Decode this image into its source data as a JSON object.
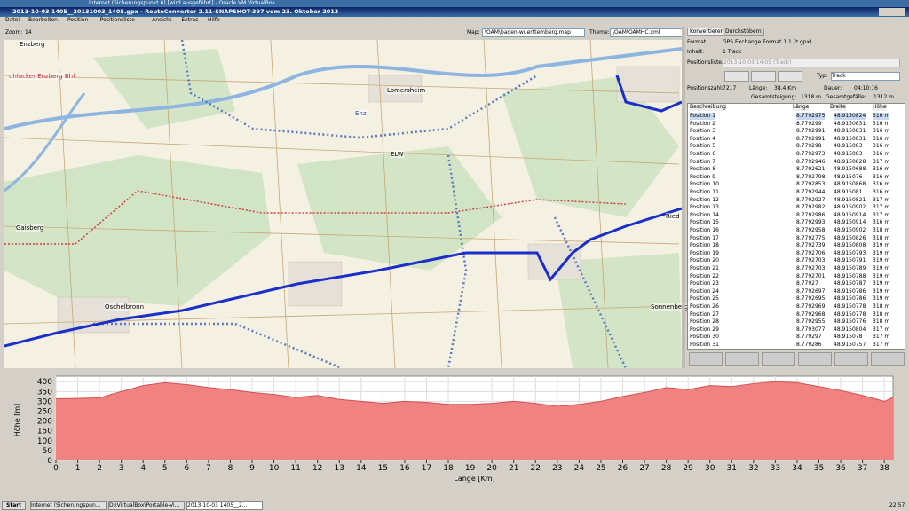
{
  "window": {
    "background_title": "Internet (Sicherungspunkt 6) [wird ausgeführt] - Oracle VM VirtualBox",
    "title": "2013-10-03 1405__20131003_1405.gpx - RouteConverter 2.11-SNAPSHOT-397 vom 23. Oktober 2013"
  },
  "menu": [
    "Datei",
    "Bearbeiten",
    "Position",
    "Positionsliste",
    "Ansicht",
    "Extras",
    "Hilfe"
  ],
  "map_toolbar": {
    "zoom_label": "Zoom:",
    "zoom": "14",
    "map_label": "Map:",
    "map": "\\OAM\\baden-wuerttemberg.map",
    "theme_label": "Theme:",
    "theme": "\\OAM\\OAMHC.xml"
  },
  "map_labels": [
    "Enzberg",
    "uhlacker Enzberg Bhf",
    "Lomersheim",
    "Enz",
    "ELW",
    "Gaisberg",
    "Oschelbronn",
    "Sonnenberg",
    "Ried"
  ],
  "panel": {
    "tabs": [
      "Konvertieren",
      "Durchstöbern"
    ],
    "format_label": "Format:",
    "format": "GPS Exchange Format 1.1 (*.gpx)",
    "inhalt_label": "Inhalt:",
    "inhalt": "1 Track",
    "positionsliste_label": "Positionsliste:",
    "positionsliste": "2013-10-03 14:05 (Track)",
    "typ_label": "Typ:",
    "typ": "Track",
    "stats": [
      {
        "label": "Positionszahl:",
        "value": "7217"
      },
      {
        "label": "Länge:",
        "value": "38.4 Km"
      },
      {
        "label": "Dauer:",
        "value": "04:10:16"
      },
      {
        "label": "Gesamtsteigung:",
        "value": "1318 m"
      },
      {
        "label": "Gesamtgefälle:",
        "value": "1312 m"
      }
    ]
  },
  "table": {
    "columns": [
      "Beschreibung",
      "Länge",
      "Breite",
      "Höhe"
    ],
    "rows": [
      [
        "Position 1",
        "8.7792975",
        "48.9150824",
        "316 m"
      ],
      [
        "Position 2",
        "8.779299",
        "48.9150831",
        "316 m"
      ],
      [
        "Position 3",
        "8.7792991",
        "48.9150831",
        "316 m"
      ],
      [
        "Position 4",
        "8.7792991",
        "48.9150831",
        "316 m"
      ],
      [
        "Position 5",
        "8.779298",
        "48.915083",
        "316 m"
      ],
      [
        "Position 6",
        "8.7792973",
        "48.915083",
        "316 m"
      ],
      [
        "Position 7",
        "8.7792946",
        "48.9150828",
        "317 m"
      ],
      [
        "Position 8",
        "8.7792621",
        "48.9150688",
        "316 m"
      ],
      [
        "Position 9",
        "8.7792798",
        "48.915076",
        "316 m"
      ],
      [
        "Position 10",
        "8.7792853",
        "48.9150868",
        "316 m"
      ],
      [
        "Position 11",
        "8.7792944",
        "48.915081",
        "316 m"
      ],
      [
        "Position 12",
        "8.7792927",
        "48.9150821",
        "317 m"
      ],
      [
        "Position 13",
        "8.7792982",
        "48.9150902",
        "317 m"
      ],
      [
        "Position 14",
        "8.7792986",
        "48.9150914",
        "317 m"
      ],
      [
        "Position 15",
        "8.7792993",
        "48.9150914",
        "316 m"
      ],
      [
        "Position 16",
        "8.7792958",
        "48.9150902",
        "318 m"
      ],
      [
        "Position 17",
        "8.7792775",
        "48.9150826",
        "318 m"
      ],
      [
        "Position 18",
        "8.7792739",
        "48.9150808",
        "319 m"
      ],
      [
        "Position 19",
        "8.7792706",
        "48.9150793",
        "319 m"
      ],
      [
        "Position 20",
        "8.7792703",
        "48.9150791",
        "319 m"
      ],
      [
        "Position 21",
        "8.7792703",
        "48.9150789",
        "319 m"
      ],
      [
        "Position 22",
        "8.7792701",
        "48.9150788",
        "319 m"
      ],
      [
        "Position 23",
        "8.77927",
        "48.9150787",
        "319 m"
      ],
      [
        "Position 24",
        "8.7792697",
        "48.9150786",
        "319 m"
      ],
      [
        "Position 25",
        "8.7792695",
        "48.9150786",
        "319 m"
      ],
      [
        "Position 26",
        "8.7792969",
        "48.9150778",
        "318 m"
      ],
      [
        "Position 27",
        "8.7792968",
        "48.9150778",
        "318 m"
      ],
      [
        "Position 28",
        "8.7792955",
        "48.9150776",
        "318 m"
      ],
      [
        "Position 29",
        "8.7793077",
        "48.9150804",
        "317 m"
      ],
      [
        "Position 30",
        "8.779297",
        "48.915078",
        "317 m"
      ],
      [
        "Position 31",
        "8.779286",
        "48.9150757",
        "317 m"
      ]
    ]
  },
  "chart_data": {
    "type": "area",
    "xlabel": "Länge [Km]",
    "ylabel": "Höhe [m]",
    "color": "#f08282",
    "line_color": "#d25050",
    "x": [
      0,
      1,
      2,
      3,
      4,
      5,
      6,
      7,
      8,
      9,
      10,
      11,
      12,
      13,
      14,
      15,
      16,
      17,
      18,
      19,
      20,
      21,
      22,
      23,
      24,
      25,
      26,
      27,
      28,
      29,
      30,
      31,
      32,
      33,
      34,
      35,
      36,
      37,
      38,
      38.4
    ],
    "values": [
      313,
      315,
      318,
      350,
      380,
      395,
      385,
      370,
      360,
      345,
      335,
      320,
      330,
      310,
      300,
      290,
      300,
      295,
      285,
      285,
      290,
      300,
      290,
      275,
      285,
      300,
      325,
      345,
      370,
      360,
      380,
      375,
      390,
      400,
      395,
      375,
      355,
      330,
      300,
      320
    ],
    "xlim": [
      0,
      38.4
    ],
    "ylim": [
      0,
      410
    ],
    "xticks": [
      0,
      1,
      2,
      3,
      4,
      5,
      6,
      7,
      8,
      9,
      10,
      11,
      12,
      13,
      14,
      15,
      16,
      17,
      18,
      19,
      20,
      21,
      22,
      23,
      24,
      25,
      26,
      27,
      28,
      29,
      30,
      31,
      32,
      33,
      34,
      35,
      36,
      37,
      38
    ],
    "yticks": [
      0,
      50,
      100,
      150,
      200,
      250,
      300,
      350,
      400
    ],
    "grid": true
  },
  "taskbar": {
    "start": "Start",
    "items": [
      "Internet (Sicherungspun...",
      "D:\\VirtualBox\\Portable-Vi...",
      "2013-10-03 1405__2..."
    ],
    "clock": "22:57"
  }
}
